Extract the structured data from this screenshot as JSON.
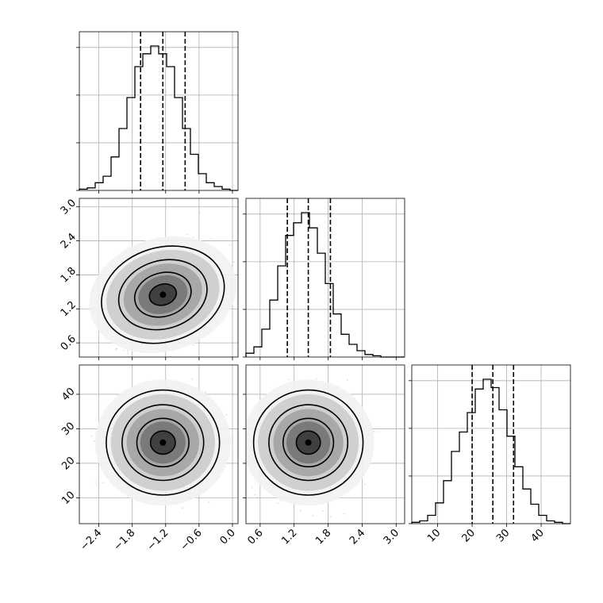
{
  "chart_data": {
    "type": "corner",
    "params": [
      {
        "ticks": [
          "−2.4",
          "−1.8",
          "−1.2",
          "−0.6",
          "0.0"
        ],
        "tick_values": [
          -2.4,
          -1.8,
          -1.2,
          -0.6,
          0.0
        ],
        "range": [
          -2.75,
          0.1
        ],
        "quantiles": [
          -1.65,
          -1.25,
          -0.85
        ],
        "mean": -1.25,
        "sd": 0.4
      },
      {
        "ticks": [
          "0.6",
          "1.2",
          "1.8",
          "2.4",
          "3.0"
        ],
        "tick_values": [
          0.6,
          1.2,
          1.8,
          2.4,
          3.0
        ],
        "range": [
          0.35,
          3.15
        ],
        "quantiles": [
          1.08,
          1.45,
          1.84
        ],
        "mean": 1.45,
        "sd": 0.38
      },
      {
        "ticks": [
          "10",
          "20",
          "30",
          "40"
        ],
        "tick_values": [
          10,
          20,
          30,
          40
        ],
        "range": [
          2.5,
          48.5
        ],
        "quantiles": [
          20,
          26,
          32
        ],
        "mean": 26,
        "sd": 6.2
      }
    ],
    "histograms": [
      {
        "param": 0,
        "bin_edges_from": -2.75,
        "bin_width": 0.1425,
        "counts": [
          1,
          2,
          6,
          11,
          26,
          48,
          72,
          96,
          106,
          112,
          106,
          96,
          72,
          48,
          28,
          13,
          6,
          3,
          1,
          0
        ]
      },
      {
        "param": 1,
        "bin_edges_from": 0.35,
        "bin_width": 0.14,
        "counts": [
          3,
          8,
          22,
          45,
          72,
          96,
          106,
          114,
          102,
          82,
          58,
          34,
          18,
          10,
          5,
          2,
          1,
          0,
          0,
          0
        ]
      },
      {
        "param": 2,
        "bin_edges_from": 2.5,
        "bin_width": 2.3,
        "counts": [
          1,
          2,
          6,
          15,
          31,
          52,
          66,
          80,
          97,
          104,
          98,
          82,
          63,
          41,
          25,
          14,
          6,
          2,
          1,
          0
        ]
      }
    ],
    "pairs": [
      {
        "x": 0,
        "y": 1,
        "correlation": 0.35
      },
      {
        "x": 0,
        "y": 2,
        "correlation": 0.05
      },
      {
        "x": 1,
        "y": 2,
        "correlation": 0.05
      }
    ],
    "contour_levels": 4,
    "quantile_line_style": "dashed",
    "grid": true
  }
}
